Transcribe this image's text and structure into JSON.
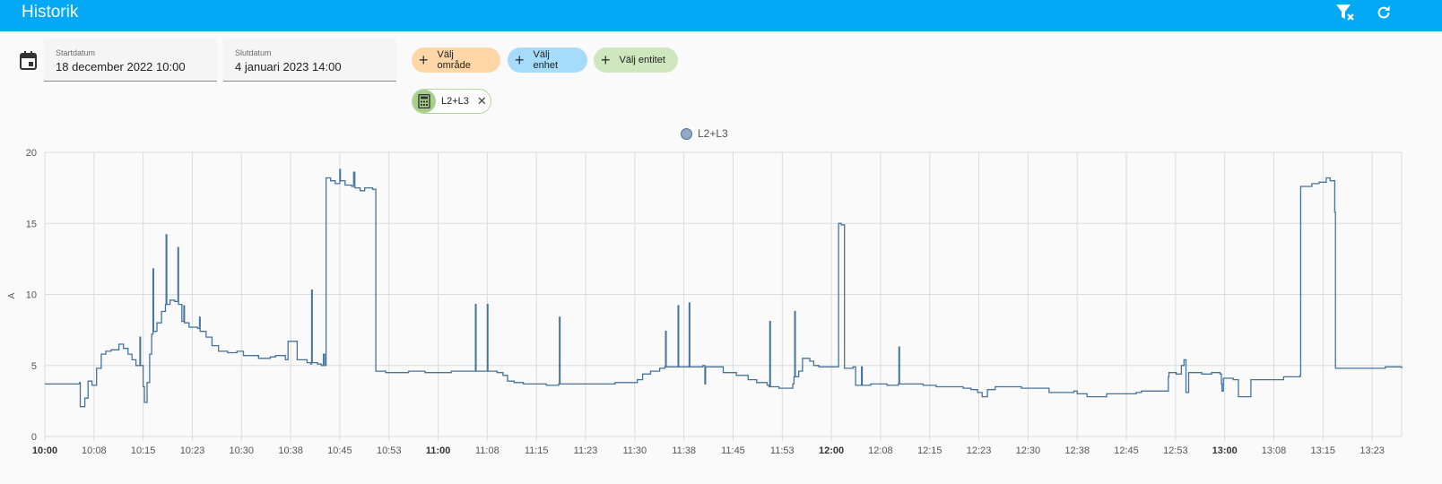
{
  "header": {
    "title": "Historik",
    "filter_clear_icon": "filter-remove-icon",
    "refresh_icon": "refresh-icon"
  },
  "date_picker": {
    "icon": "calendar-icon",
    "start_label": "Startdatum",
    "start_value": "18 december 2022 10:00",
    "end_label": "Slutdatum",
    "end_value": "4 januari 2023 14:00"
  },
  "target_picker": {
    "area_label": "Välj område",
    "device_label": "Välj enhet",
    "entity_label": "Välj entitet",
    "selected_entity": {
      "name": "L2+L3",
      "icon": "calculator-icon"
    }
  },
  "colors": {
    "appbar": "#03a9f4",
    "area_chip": "#ffd6a6",
    "device_chip": "#a7dbfa",
    "entity_chip": "#cfe6be",
    "series_line": "#44739e"
  },
  "chart_data": {
    "type": "line",
    "step": true,
    "legend": [
      "L2+L3"
    ],
    "legend_position": "top-center",
    "ylabel": "A",
    "ylim": [
      0,
      20
    ],
    "yticks": [
      "0",
      "5",
      "10",
      "15",
      "20"
    ],
    "xlim_minutes": [
      0,
      207
    ],
    "xticks": [
      {
        "t": 0,
        "label": "10:00",
        "bold": true
      },
      {
        "t": 7.5,
        "label": "10:08"
      },
      {
        "t": 15,
        "label": "10:15"
      },
      {
        "t": 22.5,
        "label": "10:23"
      },
      {
        "t": 30,
        "label": "10:30"
      },
      {
        "t": 37.5,
        "label": "10:38"
      },
      {
        "t": 45,
        "label": "10:45"
      },
      {
        "t": 52.5,
        "label": "10:53"
      },
      {
        "t": 60,
        "label": "11:00",
        "bold": true
      },
      {
        "t": 67.5,
        "label": "11:08"
      },
      {
        "t": 75,
        "label": "11:15"
      },
      {
        "t": 82.5,
        "label": "11:23"
      },
      {
        "t": 90,
        "label": "11:30"
      },
      {
        "t": 97.5,
        "label": "11:38"
      },
      {
        "t": 105,
        "label": "11:45"
      },
      {
        "t": 112.5,
        "label": "11:53"
      },
      {
        "t": 120,
        "label": "12:00",
        "bold": true
      },
      {
        "t": 127.5,
        "label": "12:08"
      },
      {
        "t": 135,
        "label": "12:15"
      },
      {
        "t": 142.5,
        "label": "12:23"
      },
      {
        "t": 150,
        "label": "12:30"
      },
      {
        "t": 157.5,
        "label": "12:38"
      },
      {
        "t": 165,
        "label": "12:45"
      },
      {
        "t": 172.5,
        "label": "12:53"
      },
      {
        "t": 180,
        "label": "13:00",
        "bold": true
      },
      {
        "t": 187.5,
        "label": "13:08"
      },
      {
        "t": 195,
        "label": "13:15"
      },
      {
        "t": 202.5,
        "label": "13:23"
      }
    ],
    "grid": true,
    "series": [
      {
        "name": "L2+L3",
        "points": [
          [
            0,
            3.7
          ],
          [
            5.3,
            3.8
          ],
          [
            5.4,
            2.1
          ],
          [
            6.1,
            2.7
          ],
          [
            6.6,
            3.9
          ],
          [
            7.2,
            3.6
          ],
          [
            7.9,
            4.8
          ],
          [
            8.6,
            5.8
          ],
          [
            9.3,
            6.0
          ],
          [
            10.1,
            6.1
          ],
          [
            11.3,
            6.5
          ],
          [
            12.0,
            6.2
          ],
          [
            12.7,
            5.8
          ],
          [
            13.3,
            5.4
          ],
          [
            13.9,
            5.0
          ],
          [
            14.5,
            7.0
          ],
          [
            14.6,
            5.0
          ],
          [
            15.0,
            3.5
          ],
          [
            15.2,
            2.4
          ],
          [
            15.6,
            3.8
          ],
          [
            16.0,
            5.8
          ],
          [
            16.3,
            7.2
          ],
          [
            16.5,
            11.8
          ],
          [
            16.6,
            7.4
          ],
          [
            17.1,
            8.0
          ],
          [
            17.8,
            8.8
          ],
          [
            18.4,
            9.3
          ],
          [
            18.5,
            14.2
          ],
          [
            18.6,
            9.3
          ],
          [
            19.1,
            9.6
          ],
          [
            19.8,
            9.5
          ],
          [
            20.3,
            13.3
          ],
          [
            20.4,
            9.3
          ],
          [
            20.9,
            8.1
          ],
          [
            21.2,
            9.2
          ],
          [
            21.3,
            8.0
          ],
          [
            22.0,
            7.7
          ],
          [
            23.3,
            7.6
          ],
          [
            23.6,
            8.4
          ],
          [
            23.7,
            7.4
          ],
          [
            24.6,
            7.0
          ],
          [
            25.5,
            6.4
          ],
          [
            26.5,
            6.0
          ],
          [
            27.9,
            5.9
          ],
          [
            29.3,
            6.0
          ],
          [
            30.3,
            5.7
          ],
          [
            32.6,
            5.5
          ],
          [
            34.4,
            5.6
          ],
          [
            35.2,
            5.7
          ],
          [
            36.7,
            5.4
          ],
          [
            37.1,
            6.7
          ],
          [
            38.5,
            5.4
          ],
          [
            40.0,
            5.2
          ],
          [
            40.6,
            5.1
          ],
          [
            40.7,
            10.3
          ],
          [
            40.8,
            5.2
          ],
          [
            41.6,
            5.1
          ],
          [
            42.2,
            5.0
          ],
          [
            42.5,
            5.8
          ],
          [
            42.7,
            5.0
          ],
          [
            42.9,
            18.2
          ],
          [
            43.6,
            18.0
          ],
          [
            44.3,
            17.8
          ],
          [
            45.0,
            18.8
          ],
          [
            45.1,
            18.0
          ],
          [
            45.8,
            17.7
          ],
          [
            46.8,
            17.6
          ],
          [
            47.1,
            18.6
          ],
          [
            47.3,
            17.5
          ],
          [
            48.1,
            17.3
          ],
          [
            48.8,
            17.5
          ],
          [
            50.0,
            17.4
          ],
          [
            50.5,
            4.6
          ],
          [
            52.0,
            4.5
          ],
          [
            55.5,
            4.6
          ],
          [
            58.0,
            4.5
          ],
          [
            62.0,
            4.6
          ],
          [
            65.6,
            4.6
          ],
          [
            65.7,
            9.3
          ],
          [
            65.8,
            4.6
          ],
          [
            67.4,
            4.6
          ],
          [
            67.5,
            9.3
          ],
          [
            67.6,
            4.6
          ],
          [
            69.0,
            4.5
          ],
          [
            69.9,
            4.3
          ],
          [
            70.6,
            3.9
          ],
          [
            71.6,
            3.8
          ],
          [
            73.0,
            3.7
          ],
          [
            76.5,
            3.6
          ],
          [
            78.4,
            3.7
          ],
          [
            78.5,
            8.4
          ],
          [
            78.6,
            3.7
          ],
          [
            84.0,
            3.7
          ],
          [
            87.0,
            3.8
          ],
          [
            89.6,
            3.8
          ],
          [
            90.4,
            4.0
          ],
          [
            91.2,
            4.4
          ],
          [
            92.4,
            4.6
          ],
          [
            93.8,
            4.8
          ],
          [
            94.6,
            4.9
          ],
          [
            94.7,
            7.4
          ],
          [
            94.8,
            4.9
          ],
          [
            96.5,
            4.9
          ],
          [
            96.6,
            9.2
          ],
          [
            96.7,
            4.9
          ],
          [
            98.2,
            4.9
          ],
          [
            98.3,
            9.4
          ],
          [
            98.4,
            4.9
          ],
          [
            100.4,
            5.0
          ],
          [
            100.7,
            3.7
          ],
          [
            100.8,
            4.9
          ],
          [
            102.0,
            4.9
          ],
          [
            103.5,
            4.5
          ],
          [
            105.5,
            4.3
          ],
          [
            107.3,
            4.0
          ],
          [
            108.6,
            3.8
          ],
          [
            110.2,
            3.6
          ],
          [
            110.5,
            3.5
          ],
          [
            110.6,
            8.1
          ],
          [
            110.7,
            3.5
          ],
          [
            112.0,
            3.4
          ],
          [
            114.1,
            3.7
          ],
          [
            114.3,
            4.2
          ],
          [
            114.4,
            8.8
          ],
          [
            114.5,
            4.2
          ],
          [
            115.0,
            4.6
          ],
          [
            115.6,
            5.5
          ],
          [
            116.7,
            5.3
          ],
          [
            117.3,
            5.0
          ],
          [
            118.1,
            4.9
          ],
          [
            120.0,
            4.9
          ],
          [
            121.0,
            4.9
          ],
          [
            121.1,
            15.0
          ],
          [
            121.5,
            14.9
          ],
          [
            122.0,
            4.8
          ],
          [
            123.3,
            4.9
          ],
          [
            123.7,
            3.6
          ],
          [
            124.6,
            4.9
          ],
          [
            124.7,
            3.6
          ],
          [
            126.0,
            3.7
          ],
          [
            128.5,
            3.6
          ],
          [
            130.2,
            3.7
          ],
          [
            130.3,
            6.3
          ],
          [
            130.4,
            3.7
          ],
          [
            132.0,
            3.7
          ],
          [
            134.0,
            3.6
          ],
          [
            136.0,
            3.5
          ],
          [
            138.0,
            3.5
          ],
          [
            140.1,
            3.4
          ],
          [
            141.3,
            3.3
          ],
          [
            142.3,
            3.1
          ],
          [
            143.0,
            2.8
          ],
          [
            143.8,
            3.3
          ],
          [
            145.0,
            3.5
          ],
          [
            147.0,
            3.5
          ],
          [
            149.0,
            3.4
          ],
          [
            151.0,
            3.4
          ],
          [
            152.3,
            3.4
          ],
          [
            153.2,
            3.1
          ],
          [
            157.0,
            3.2
          ],
          [
            157.5,
            3.0
          ],
          [
            159.0,
            2.8
          ],
          [
            162.0,
            3.0
          ],
          [
            166.5,
            3.1
          ],
          [
            167.3,
            3.2
          ],
          [
            171.0,
            3.2
          ],
          [
            171.4,
            4.2
          ],
          [
            171.5,
            4.5
          ],
          [
            172.6,
            4.4
          ],
          [
            173.4,
            5.0
          ],
          [
            173.8,
            5.4
          ],
          [
            174.1,
            3.1
          ],
          [
            174.5,
            4.5
          ],
          [
            176.5,
            4.4
          ],
          [
            178.0,
            4.5
          ],
          [
            179.3,
            4.4
          ],
          [
            179.5,
            3.7
          ],
          [
            179.6,
            3.2
          ],
          [
            179.8,
            4.1
          ],
          [
            181.3,
            4.0
          ],
          [
            182.1,
            2.8
          ],
          [
            183.3,
            2.8
          ],
          [
            184.0,
            4.0
          ],
          [
            185.5,
            4.0
          ],
          [
            186.5,
            4.0
          ],
          [
            189.0,
            4.2
          ],
          [
            191.5,
            4.3
          ],
          [
            191.6,
            17.6
          ],
          [
            193.3,
            17.8
          ],
          [
            194.4,
            17.9
          ],
          [
            195.5,
            18.2
          ],
          [
            196.1,
            18.0
          ],
          [
            196.8,
            15.8
          ],
          [
            196.9,
            4.8
          ],
          [
            200.0,
            4.8
          ],
          [
            203.5,
            4.8
          ],
          [
            204.5,
            4.9
          ],
          [
            207.0,
            4.8
          ]
        ]
      }
    ]
  }
}
